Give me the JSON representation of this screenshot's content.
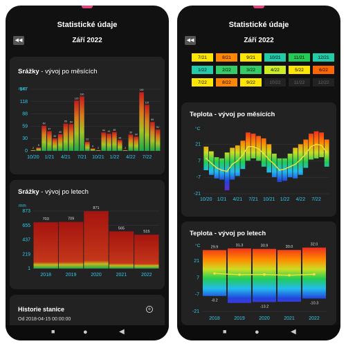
{
  "left": {
    "title": "Statistické údaje",
    "year_label": "Září 2022",
    "prev_icon": "rewind-icon",
    "precip_monthly": {
      "title_bold": "Srážky",
      "title_rest": " - vývoj po měsících",
      "unit": "mm",
      "yticks": [
        "147",
        "118",
        "88",
        "59",
        "30",
        "0"
      ],
      "xticks": [
        "10/20",
        "1/21",
        "4/21",
        "7/21",
        "10/21",
        "1/22",
        "4/22",
        "7/22"
      ]
    },
    "precip_yearly": {
      "title_bold": "Srážky",
      "title_rest": " - vývoj po letech",
      "unit": "mm",
      "yticks": [
        "873",
        "655",
        "437",
        "219",
        "1"
      ],
      "xticks": [
        "2018",
        "2019",
        "2020",
        "2021",
        "2022"
      ],
      "value_labels": [
        "703",
        "709",
        "871",
        "565",
        "515"
      ]
    },
    "history": {
      "title": "Historie stanice",
      "date": "Od 2018-04-15 00:00:00"
    }
  },
  "right": {
    "title": "Statistické údaje",
    "year_label": "Září 2022",
    "grid": [
      [
        "7/21",
        "8/21",
        "9/21",
        "10/21",
        "11/21",
        "12/21"
      ],
      [
        "1/22",
        "2/22",
        "3/22",
        "4/22",
        "5/22",
        "6/22"
      ],
      [
        "7/22",
        "8/22",
        "9/22",
        "10/22",
        "11/22",
        "12/22"
      ]
    ],
    "temp_monthly": {
      "title": "Teplota - vývoj po měsících",
      "unit": "°C",
      "yticks": [
        "21",
        "7",
        "-7",
        "-21"
      ],
      "xticks": [
        "10/20",
        "1/21",
        "4/21",
        "7/21",
        "10/21",
        "1/22",
        "4/22",
        "7/22"
      ]
    },
    "temp_yearly": {
      "title": "Teplota - vývoj po letech",
      "unit": "°C",
      "yticks": [
        "21",
        "7",
        "-7",
        "-21"
      ],
      "xticks": [
        "2018",
        "2019",
        "2020",
        "2021",
        "2022"
      ],
      "max_labels": [
        "29.9",
        "31.3",
        "30.9",
        "30.0",
        "32.0"
      ],
      "min_labels": [
        "-8.2",
        "",
        "-13.2",
        "",
        "-10.3"
      ]
    }
  },
  "nav": {
    "home": "●",
    "back": "◀",
    "recents": "■"
  },
  "chart_data": [
    {
      "type": "bar",
      "title": "Srážky - vývoj po měsících",
      "ylabel": "mm",
      "categories": [
        "10/20",
        "11/20",
        "12/20",
        "1/21",
        "2/21",
        "3/21",
        "4/21",
        "5/21",
        "6/21",
        "7/21",
        "8/21",
        "9/21",
        "10/21",
        "11/21",
        "12/21",
        "1/22",
        "2/22",
        "3/22",
        "4/22",
        "5/22",
        "6/22",
        "7/22",
        "8/22",
        "9/22"
      ],
      "values": [
        2,
        8,
        60,
        47,
        30,
        40,
        65,
        64,
        120,
        130,
        22,
        6,
        2,
        44,
        41,
        45,
        26,
        2,
        39,
        34,
        140,
        110,
        69,
        51
      ],
      "ylim": [
        0,
        147
      ]
    },
    {
      "type": "bar",
      "title": "Srážky - vývoj po letech",
      "ylabel": "mm",
      "categories": [
        "2018",
        "2019",
        "2020",
        "2021",
        "2022"
      ],
      "values": [
        703,
        709,
        871,
        565,
        515
      ],
      "ylim": [
        1,
        873
      ]
    },
    {
      "type": "bar",
      "title": "Teplota - vývoj po letech",
      "ylabel": "°C",
      "categories": [
        "2018",
        "2019",
        "2020",
        "2021",
        "2022"
      ],
      "series": [
        {
          "name": "max",
          "values": [
            29.9,
            31.3,
            30.9,
            30.0,
            32.0
          ]
        },
        {
          "name": "min",
          "values": [
            -8.2,
            -14,
            -13.2,
            -13,
            -10.3
          ]
        },
        {
          "name": "avg",
          "values": [
            10.5,
            9.5,
            9.6,
            9.0,
            9.8
          ]
        }
      ],
      "ylim": [
        -21,
        33
      ]
    },
    {
      "type": "bar",
      "title": "Teplota - vývoj po měsících",
      "ylabel": "°C",
      "categories": [
        "10/20",
        "11/20",
        "12/20",
        "1/21",
        "2/21",
        "3/21",
        "4/21",
        "5/21",
        "6/21",
        "7/21",
        "8/21",
        "9/21",
        "10/21",
        "11/21",
        "12/21",
        "1/22",
        "2/22",
        "3/22",
        "4/22",
        "5/22",
        "6/22",
        "7/22",
        "8/22",
        "9/22"
      ],
      "series": [
        {
          "name": "max",
          "values": [
            19,
            15,
            10,
            9,
            14,
            18,
            20,
            24,
            31,
            30,
            28,
            26,
            21,
            13,
            9,
            9,
            13,
            18,
            21,
            25,
            30,
            32,
            31,
            25
          ]
        },
        {
          "name": "min",
          "values": [
            -1,
            -5,
            -8,
            -9,
            -18,
            -9,
            -6,
            0,
            7,
            9,
            7,
            2,
            -3,
            -7,
            -11,
            -10,
            -7,
            -8,
            -5,
            1,
            8,
            9,
            10,
            2
          ]
        },
        {
          "name": "avg",
          "values": [
            9,
            5,
            1,
            -1,
            -2,
            4,
            7,
            12,
            19,
            19,
            17,
            13,
            8,
            4,
            -1,
            0,
            2,
            4,
            8,
            13,
            19,
            21,
            20,
            14
          ]
        }
      ],
      "ylim": [
        -21,
        33
      ]
    }
  ]
}
